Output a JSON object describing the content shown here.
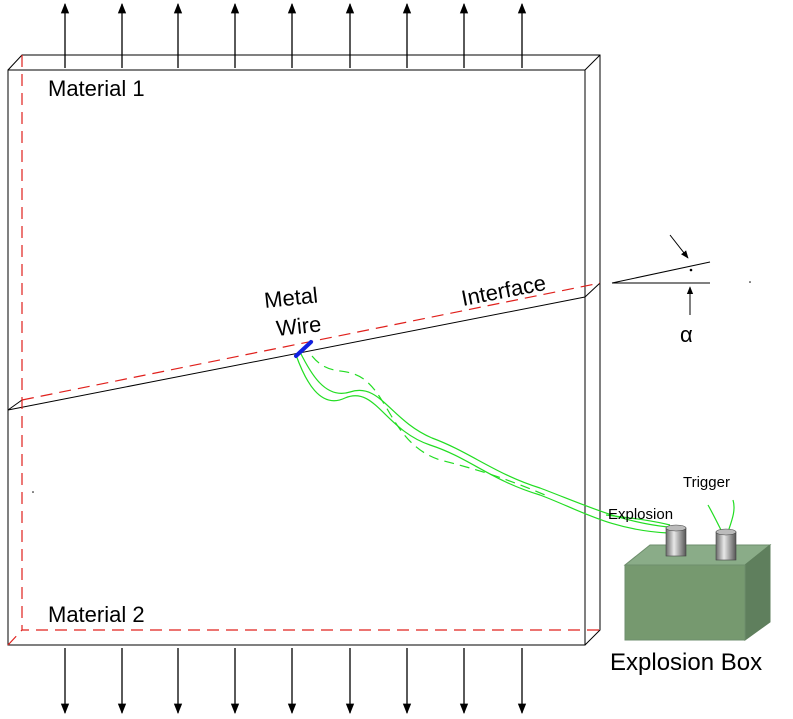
{
  "labels": {
    "material_1": "Material 1",
    "material_2": "Material 2",
    "metal": "Metal",
    "wire": "Wire",
    "interface": "Interface",
    "alpha": "α",
    "trigger": "Trigger",
    "explosion": "Explosion",
    "explosion_box": "Explosion Box"
  }
}
